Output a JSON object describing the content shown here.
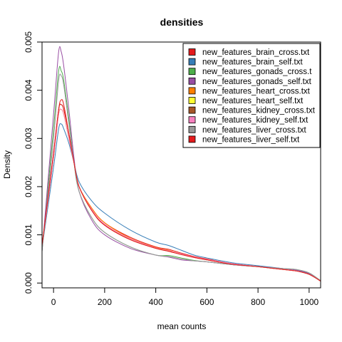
{
  "chart_data": {
    "type": "line",
    "title": "densities",
    "xlabel": "mean counts",
    "ylabel": "Density",
    "xlim": [
      -45,
      1045
    ],
    "ylim": [
      -0.0001,
      0.005
    ],
    "x_ticks": [
      0,
      200,
      400,
      600,
      800,
      1000
    ],
    "x_tick_labels": [
      "0",
      "200",
      "400",
      "600",
      "800",
      "1000"
    ],
    "y_ticks": [
      0.0,
      0.001,
      0.002,
      0.003,
      0.004,
      0.005
    ],
    "y_tick_labels": [
      "0.000",
      "0.001",
      "0.002",
      "0.003",
      "0.004",
      "0.005"
    ],
    "grid": false,
    "legend_position": "top-right",
    "x": [
      -45,
      0,
      20,
      30,
      40,
      60,
      80,
      100,
      150,
      200,
      300,
      400,
      450,
      500,
      550,
      600,
      700,
      800,
      900,
      950,
      1000,
      1045
    ],
    "series": [
      {
        "name": "new_features_brain_cross.txt",
        "color": "#e41a1c",
        "values": [
          0.00078,
          0.0026,
          0.0036,
          0.0038,
          0.0037,
          0.0031,
          0.0025,
          0.002,
          0.00155,
          0.00125,
          0.00095,
          0.00075,
          0.0007,
          0.00062,
          0.00055,
          0.0005,
          0.0004,
          0.00034,
          0.00028,
          0.00025,
          0.00018,
          4e-05
        ]
      },
      {
        "name": "new_features_brain_self.txt",
        "color": "#377eb8",
        "values": [
          0.00073,
          0.0024,
          0.0032,
          0.0033,
          0.0032,
          0.0029,
          0.0025,
          0.0021,
          0.0017,
          0.00145,
          0.0011,
          0.00085,
          0.00078,
          0.00068,
          0.00058,
          0.00052,
          0.00042,
          0.00036,
          0.0003,
          0.00027,
          0.00019,
          4e-05
        ]
      },
      {
        "name": "new_features_gonads_cross.t",
        "color": "#4daf4a",
        "values": [
          0.00066,
          0.0032,
          0.0044,
          0.0044,
          0.0042,
          0.0034,
          0.0025,
          0.0019,
          0.00135,
          0.00105,
          0.00075,
          0.00058,
          0.00057,
          0.00052,
          0.00047,
          0.00044,
          0.00038,
          0.00034,
          0.0003,
          0.00028,
          0.00021,
          5e-05
        ]
      },
      {
        "name": "new_features_gonads_self.txt",
        "color": "#984ea3",
        "values": [
          0.00066,
          0.0035,
          0.0048,
          0.0048,
          0.0045,
          0.0036,
          0.0026,
          0.0019,
          0.0013,
          0.001,
          0.00072,
          0.00058,
          0.00054,
          0.00048,
          0.00046,
          0.00044,
          0.00038,
          0.00034,
          0.0003,
          0.00027,
          0.0002,
          4e-05
        ]
      },
      {
        "name": "new_features_heart_cross.txt",
        "color": "#ff7f00",
        "values": [
          0.00076,
          0.0026,
          0.0035,
          0.0036,
          0.0035,
          0.003,
          0.0025,
          0.002,
          0.00155,
          0.00125,
          0.00093,
          0.00074,
          0.00068,
          0.0006,
          0.00054,
          0.00049,
          0.0004,
          0.00034,
          0.00028,
          0.00025,
          0.00018,
          4e-05
        ]
      },
      {
        "name": "new_features_heart_self.txt",
        "color": "#ffff33",
        "values": [
          0.00076,
          0.0026,
          0.0035,
          0.0036,
          0.0035,
          0.003,
          0.0025,
          0.002,
          0.0015,
          0.0012,
          0.0009,
          0.00072,
          0.00066,
          0.00059,
          0.00053,
          0.00048,
          0.00039,
          0.00034,
          0.00028,
          0.00025,
          0.00018,
          4e-05
        ]
      },
      {
        "name": "new_features_kidney_cross.txt",
        "color": "#a65628",
        "values": [
          0.00078,
          0.0027,
          0.0036,
          0.0037,
          0.0036,
          0.0031,
          0.0025,
          0.002,
          0.0015,
          0.0012,
          0.0009,
          0.00072,
          0.00066,
          0.00059,
          0.00053,
          0.00048,
          0.00039,
          0.00034,
          0.00028,
          0.00025,
          0.00018,
          4e-05
        ]
      },
      {
        "name": "new_features_kidney_self.txt",
        "color": "#f781bf",
        "values": [
          0.00076,
          0.0026,
          0.0035,
          0.0036,
          0.0035,
          0.003,
          0.0025,
          0.002,
          0.00152,
          0.00122,
          0.00092,
          0.00073,
          0.00067,
          0.0006,
          0.00054,
          0.00049,
          0.0004,
          0.00034,
          0.00028,
          0.00025,
          0.00018,
          4e-05
        ]
      },
      {
        "name": "new_features_liver_cross.txt",
        "color": "#999999",
        "values": [
          0.00066,
          0.003,
          0.0042,
          0.0043,
          0.0041,
          0.0033,
          0.0025,
          0.0019,
          0.00135,
          0.00105,
          0.00075,
          0.00058,
          0.00055,
          0.0005,
          0.00046,
          0.00044,
          0.00038,
          0.00034,
          0.0003,
          0.00028,
          0.00021,
          5e-05
        ]
      },
      {
        "name": "new_features_liver_self.txt",
        "color": "#e41a1c",
        "values": [
          0.00078,
          0.0027,
          0.0036,
          0.0037,
          0.0036,
          0.0031,
          0.0025,
          0.002,
          0.0015,
          0.0012,
          0.0009,
          0.00072,
          0.00066,
          0.00059,
          0.00053,
          0.00048,
          0.00039,
          0.00034,
          0.00028,
          0.00025,
          0.00018,
          4e-05
        ]
      }
    ]
  }
}
